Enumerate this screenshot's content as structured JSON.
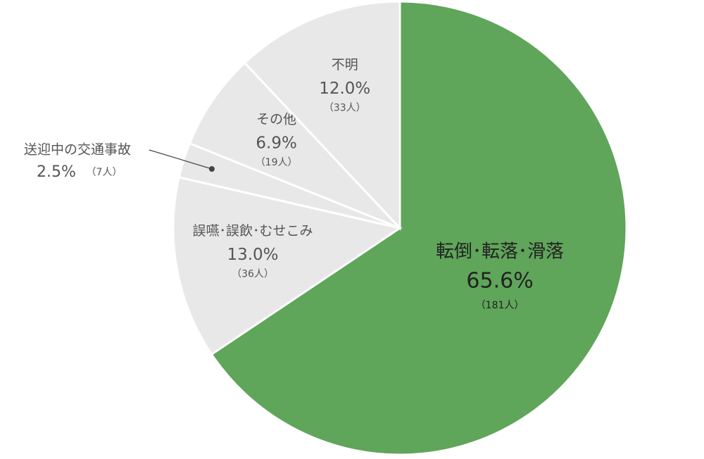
{
  "chart_data": {
    "type": "pie",
    "categories": [
      "転倒･転落･滑落",
      "誤嚥･誤飲･むせこみ",
      "送迎中の交通事故",
      "その他",
      "不明"
    ],
    "values": [
      65.6,
      13.0,
      2.5,
      6.9,
      12.0
    ],
    "value_labels": [
      "65.6%",
      "13.0%",
      "2.5%",
      "6.9%",
      "12.0%"
    ],
    "count_labels": [
      "（181人）",
      "（36人）",
      "（7人）",
      "（19人）",
      "（33人）"
    ],
    "colors": [
      "#5fa55a",
      "#e8e8e8",
      "#e8e8e8",
      "#e8e8e8",
      "#e8e8e8"
    ]
  }
}
